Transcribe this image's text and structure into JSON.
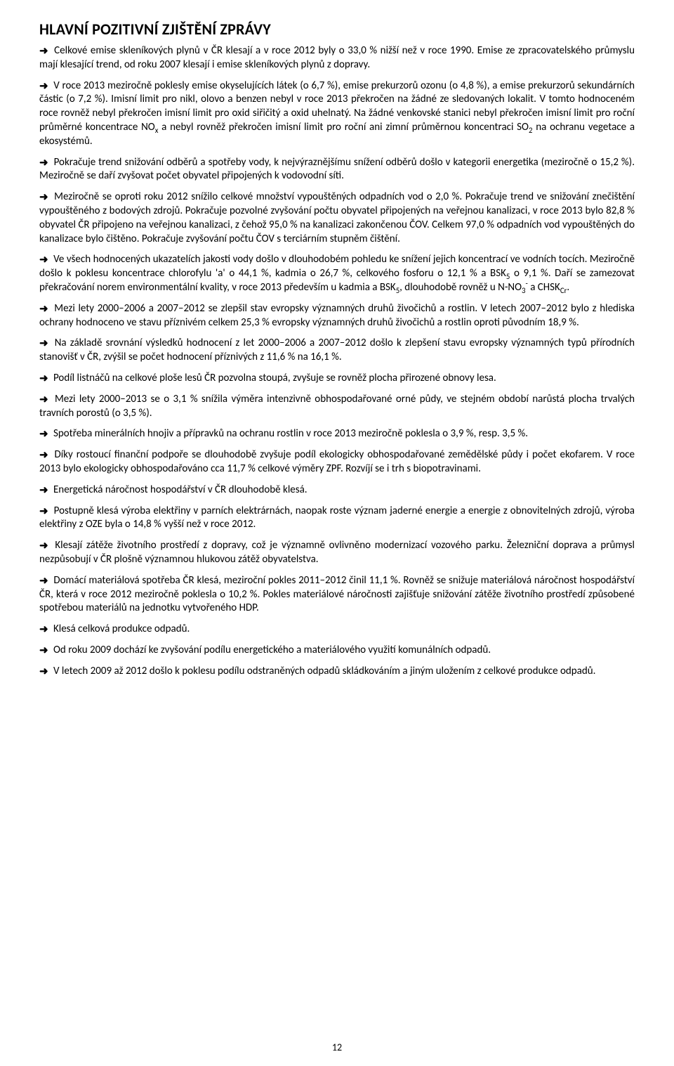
{
  "page": {
    "heading": "HLAVNÍ POZITIVNÍ ZJIŠTĚNÍ ZPRÁVY",
    "page_number": "12",
    "arrow_glyph": "➜",
    "colors": {
      "text": "#000000",
      "background": "#ffffff"
    },
    "typography": {
      "heading_fontsize_pt": 16,
      "body_fontsize_pt": 11,
      "heading_weight": "bold",
      "body_weight": "normal",
      "font_family": "Calibri"
    }
  },
  "paragraphs": [
    {
      "arrow": true,
      "runs": [
        {
          "t": "Celkové emise skleníkových plynů v ČR klesají a v roce 2012 byly o 33,0 % nižší než v roce 1990. Emise ze zpracovatelského průmyslu mají klesající trend, od roku 2007 klesají i emise skleníkových plynů z dopravy."
        }
      ]
    },
    {
      "arrow": true,
      "runs": [
        {
          "t": "V roce 2013 meziročně poklesly emise okyselujících látek (o 6,7 %), emise prekurzorů ozonu (o 4,8 %), a emise prekurzorů sekundárních částic (o 7,2 %). Imisní limit pro nikl, olovo a benzen nebyl v roce 2013 překročen na žádné ze sledovaných lokalit. V tomto hodnoceném roce rovněž nebyl překročen imisní limit pro oxid siřičitý a oxid uhelnatý. Na žádné venkovské stanici nebyl překročen imisní limit pro roční průměrné koncentrace NO"
        },
        {
          "t": "x",
          "sub": true
        },
        {
          "t": " a nebyl rovněž překročen imisní limit pro roční ani zimní průměrnou koncentraci SO"
        },
        {
          "t": "2",
          "sub": true
        },
        {
          "t": " na ochranu vegetace a ekosystémů."
        }
      ]
    },
    {
      "arrow": true,
      "runs": [
        {
          "t": "Pokračuje trend snižování odběrů a spotřeby vody, k nejvýraznějšímu snížení odběrů došlo v kategorii energetika (meziročně o 15,2 %). Meziročně se daří zvyšovat počet obyvatel připojených k vodovodní síti."
        }
      ]
    },
    {
      "arrow": true,
      "runs": [
        {
          "t": "Meziročně se oproti roku 2012 snížilo celkové množství vypouštěných odpadních vod o 2,0 %. Pokračuje trend ve snižování znečištění vypouštěného z bodových zdrojů. Pokračuje pozvolné zvyšování počtu obyvatel připojených na veřejnou kanalizaci, v roce 2013 bylo 82,8 % obyvatel ČR připojeno na veřejnou kanalizaci, z čehož 95,0 % na kanalizaci zakončenou ČOV. Celkem 97,0 % odpadních vod vypouštěných do kanalizace bylo čištěno. Pokračuje zvyšování počtu ČOV s terciárním stupněm čištění."
        }
      ]
    },
    {
      "arrow": true,
      "runs": [
        {
          "t": "Ve všech hodnocených ukazatelích jakosti vody došlo v dlouhodobém pohledu ke snížení jejich koncentrací ve vodních tocích. Meziročně došlo k poklesu koncentrace chlorofylu 'a' o 44,1 %, kadmia o 26,7 %, celkového fosforu o 12,1 % a BSK"
        },
        {
          "t": "5",
          "sub": true
        },
        {
          "t": " o 9,1 %. Daří se zamezovat překračování norem environmentální kvality, v roce 2013 především u kadmia a BSK"
        },
        {
          "t": "5",
          "sub": true
        },
        {
          "t": ", dlouhodobě rovněž u N-NO"
        },
        {
          "t": "3",
          "sub": true
        },
        {
          "t": "-",
          "sup": true
        },
        {
          "t": " a CHSK"
        },
        {
          "t": "Cr",
          "sub": true
        },
        {
          "t": "."
        }
      ]
    },
    {
      "arrow": true,
      "runs": [
        {
          "t": "Mezi lety 2000–2006 a 2007–2012 se zlepšil stav evropsky významných druhů živočichů a rostlin. V letech 2007–2012 bylo z hlediska ochrany hodnoceno ve stavu příznivém celkem 25,3 % evropsky významných druhů živočichů a rostlin oproti  původním 18,9 %."
        }
      ]
    },
    {
      "arrow": true,
      "runs": [
        {
          "t": "Na základě srovnání výsledků hodnocení z let 2000–2006 a 2007–2012 došlo k zlepšení stavu evropsky významných typů přírodních stanovišť v ČR, zvýšil se počet hodnocení příznivých z 11,6 % na 16,1 %."
        }
      ]
    },
    {
      "arrow": true,
      "runs": [
        {
          "t": "Podíl listnáčů na celkové ploše lesů ČR pozvolna stoupá, zvyšuje se rovněž plocha přirozené obnovy lesa."
        }
      ]
    },
    {
      "arrow": true,
      "runs": [
        {
          "t": "Mezi lety 2000–2013 se o 3,1 % snížila výměra intenzivně obhospodařované orné půdy, ve stejném období narůstá plocha trvalých travních porostů (o 3,5 %)."
        }
      ]
    },
    {
      "arrow": true,
      "runs": [
        {
          "t": "Spotřeba minerálních hnojiv a přípravků na ochranu rostlin v roce 2013 meziročně poklesla o 3,9 %, resp. 3,5 %."
        }
      ]
    },
    {
      "arrow": true,
      "runs": [
        {
          "t": "Díky rostoucí finanční podpoře se dlouhodobě zvyšuje podíl ekologicky obhospodařované zemědělské půdy i počet ekofarem. V roce 2013 bylo ekologicky obhospodařováno cca 11,7 % celkové výměry ZPF. Rozvíjí se i trh s biopotravinami."
        }
      ]
    },
    {
      "arrow": true,
      "runs": [
        {
          "t": "Energetická náročnost hospodářství v ČR dlouhodobě klesá."
        }
      ]
    },
    {
      "arrow": true,
      "runs": [
        {
          "t": "Postupně klesá výroba elektřiny v parních elektrárnách, naopak roste význam jaderné energie a energie z obnovitelných zdrojů, výroba elektřiny z OZE byla o 14,8 % vyšší než v roce 2012."
        }
      ]
    },
    {
      "arrow": true,
      "runs": [
        {
          "t": "Klesají zátěže životního prostředí z dopravy, což je významně ovlivněno modernizací vozového parku. Železniční doprava a průmysl nezpůsobují v ČR plošně významnou hlukovou zátěž obyvatelstva."
        }
      ]
    },
    {
      "arrow": true,
      "runs": [
        {
          "t": "Domácí materiálová spotřeba ČR klesá, meziroční pokles 2011–2012 činil 11,1 %. Rovněž se snižuje materiálová náročnost hospodářství ČR, která v roce 2012 meziročně poklesla o 10,2 %. Pokles materiálové náročnosti zajišťuje snižování zátěže životního prostředí způsobené spotřebou materiálů na jednotku vytvořeného HDP."
        }
      ]
    },
    {
      "arrow": true,
      "runs": [
        {
          "t": "Klesá celková produkce odpadů."
        }
      ]
    },
    {
      "arrow": true,
      "runs": [
        {
          "t": "Od roku 2009 dochází ke zvyšování podílu energetického a materiálového využití komunálních odpadů."
        }
      ]
    },
    {
      "arrow": true,
      "runs": [
        {
          "t": "V letech 2009 až 2012 došlo k poklesu podílu odstraněných odpadů skládkováním a jiným uložením z celkové produkce odpadů."
        }
      ]
    }
  ]
}
